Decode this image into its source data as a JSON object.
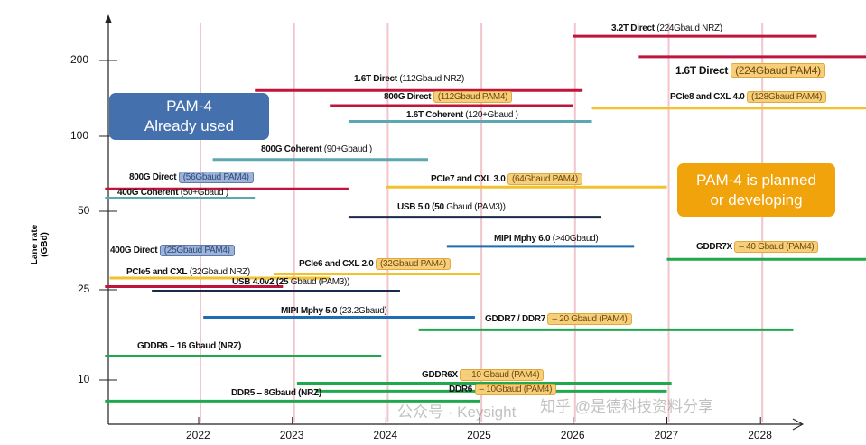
{
  "chart_data": {
    "type": "timeline",
    "ylabel": "Lane rate (GBd)",
    "y_scale": "log",
    "ylim": [
      7,
      280
    ],
    "xlim": [
      2021,
      2029.2
    ],
    "x_ticks": [
      "2022",
      "2023",
      "2024",
      "2025",
      "2026",
      "2027",
      "2028"
    ],
    "y_ticks": [
      "200",
      "100",
      "50",
      "25",
      "10"
    ],
    "grid": "vertical year lines",
    "callouts": [
      {
        "line1": "PAM-4",
        "line2": "Already used",
        "color": "#4470ad"
      },
      {
        "line1": "PAM-4 is planned",
        "line2": "or developing",
        "color": "#f0a30a"
      }
    ],
    "lines": [
      {
        "name": "3.2T Direct",
        "detail": "(224Gbaud NRZ)",
        "start": 2026.0,
        "end": 2028.6,
        "rate": 251,
        "color": "#c0143c",
        "highlight": "none"
      },
      {
        "name": "1.6T Direct",
        "detail": "(224Gbaud PAM4)",
        "start": 2026.7,
        "end": 2029.2,
        "rate": 207,
        "color": "#c0143c",
        "highlight": "orange"
      },
      {
        "name": "1.6T Direct",
        "detail": "(112Gbaud NRZ)",
        "start": 2022.6,
        "end": 2026.1,
        "rate": 151,
        "color": "#c0143c",
        "highlight": "none"
      },
      {
        "name": "800G Direct",
        "detail": "(112Gbaud PAM4)",
        "start": 2023.4,
        "end": 2026.0,
        "rate": 131,
        "color": "#c0143c",
        "highlight": "orange"
      },
      {
        "name": "1.6T Coherent",
        "detail": "(120+Gbaud )",
        "start": 2023.6,
        "end": 2026.2,
        "rate": 113,
        "color": "#5ba8b0",
        "highlight": "none"
      },
      {
        "name": "PCIe8 and CXL 4.0",
        "detail": "(128Gbaud PAM4)",
        "start": 2026.2,
        "end": 2029.2,
        "rate": 128,
        "color": "#f2c12e",
        "highlight": "orange"
      },
      {
        "name": "800G Coherent",
        "detail": "(90+Gbaud )",
        "start": 2022.15,
        "end": 2024.45,
        "rate": 79,
        "color": "#5ba8b0",
        "highlight": "none"
      },
      {
        "name": "800G Direct",
        "detail": "(56Gbaud PAM4)",
        "start": 2021.0,
        "end": 2023.6,
        "rate": 60,
        "color": "#c0143c",
        "highlight": "blue"
      },
      {
        "name": "400G Coherent",
        "detail": "(50+Gbaud )",
        "start": 2021.0,
        "end": 2022.6,
        "rate": 55,
        "color": "#5ba8b0",
        "highlight": "none"
      },
      {
        "name": "PCIe7 and CXL 3.0",
        "detail": "(64Gbaud PAM4)",
        "start": 2024.0,
        "end": 2027.0,
        "rate": 61,
        "color": "#f2c12e",
        "highlight": "orange"
      },
      {
        "name": "USB 5.0 (50",
        "detail": "Gbaud (PAM3))",
        "start": 2023.6,
        "end": 2026.3,
        "rate": 46,
        "color": "#1a2a4a",
        "highlight": "none"
      },
      {
        "name": "MIPI Mphy 6.0",
        "detail": "(>40Gbaud)",
        "start": 2024.65,
        "end": 2026.65,
        "rate": 35,
        "color": "#1f6db5",
        "highlight": "none"
      },
      {
        "name": "GDDR7X",
        "detail": "– 40 Gbaud (PAM4)",
        "start": 2027.0,
        "end": 2029.2,
        "rate": 31,
        "color": "#20a84f",
        "highlight": "orange"
      },
      {
        "name": "400G Direct",
        "detail": "(25Gbaud PAM4)",
        "start": 2021.0,
        "end": 2022.9,
        "rate": 24,
        "color": "#c0143c",
        "highlight": "blue"
      },
      {
        "name": "PCIe6 and CXL 2.0",
        "detail": "(32Gbaud PAM4)",
        "start": 2022.8,
        "end": 2025.0,
        "rate": 27,
        "color": "#f2c12e",
        "highlight": "orange"
      },
      {
        "name": "PCIe5 and CXL",
        "detail": "(32Gbaud NRZ)",
        "start": 2021.05,
        "end": 2023.4,
        "rate": 26,
        "color": "#f2c12e",
        "highlight": "none"
      },
      {
        "name": "USB 4.0v2 (25",
        "detail": "Gbaud (PAM3))",
        "start": 2021.5,
        "end": 2024.15,
        "rate": 23,
        "color": "#1a2a4a",
        "highlight": "none"
      },
      {
        "name": "MIPI Mphy 5.0",
        "detail": "(23.2Gbaud)",
        "start": 2022.05,
        "end": 2024.95,
        "rate": 18,
        "color": "#1f6db5",
        "highlight": "none"
      },
      {
        "name": "GDDR7 / DDR7",
        "detail": "– 20 Gbaud (PAM4)",
        "start": 2024.35,
        "end": 2028.35,
        "rate": 16,
        "color": "#20a84f",
        "highlight": "orange"
      },
      {
        "name": "GDDR6 – 16 Gbaud (NRZ)",
        "detail": "",
        "start": 2021.0,
        "end": 2023.95,
        "rate": 12.5,
        "color": "#20a84f",
        "highlight": "none"
      },
      {
        "name": "GDDR6X",
        "detail": "– 10 Gbaud (PAM4)",
        "start": 2023.05,
        "end": 2027.05,
        "rate": 9.7,
        "color": "#20a84f",
        "highlight": "orange"
      },
      {
        "name": "DDR6",
        "detail": "– 10Gbaud (PAM4)",
        "start": 2023.25,
        "end": 2027.0,
        "rate": 9.0,
        "color": "#20a84f",
        "highlight": "orange"
      },
      {
        "name": "DDR5 – 8Gbaud (NRZ)",
        "detail": "",
        "start": 2021.0,
        "end": 2025.0,
        "rate": 8.2,
        "color": "#20a84f",
        "highlight": "none"
      }
    ]
  },
  "watermark": {
    "left": "公众号 · Keysight",
    "right": "知乎 @是德科技资料分享"
  }
}
